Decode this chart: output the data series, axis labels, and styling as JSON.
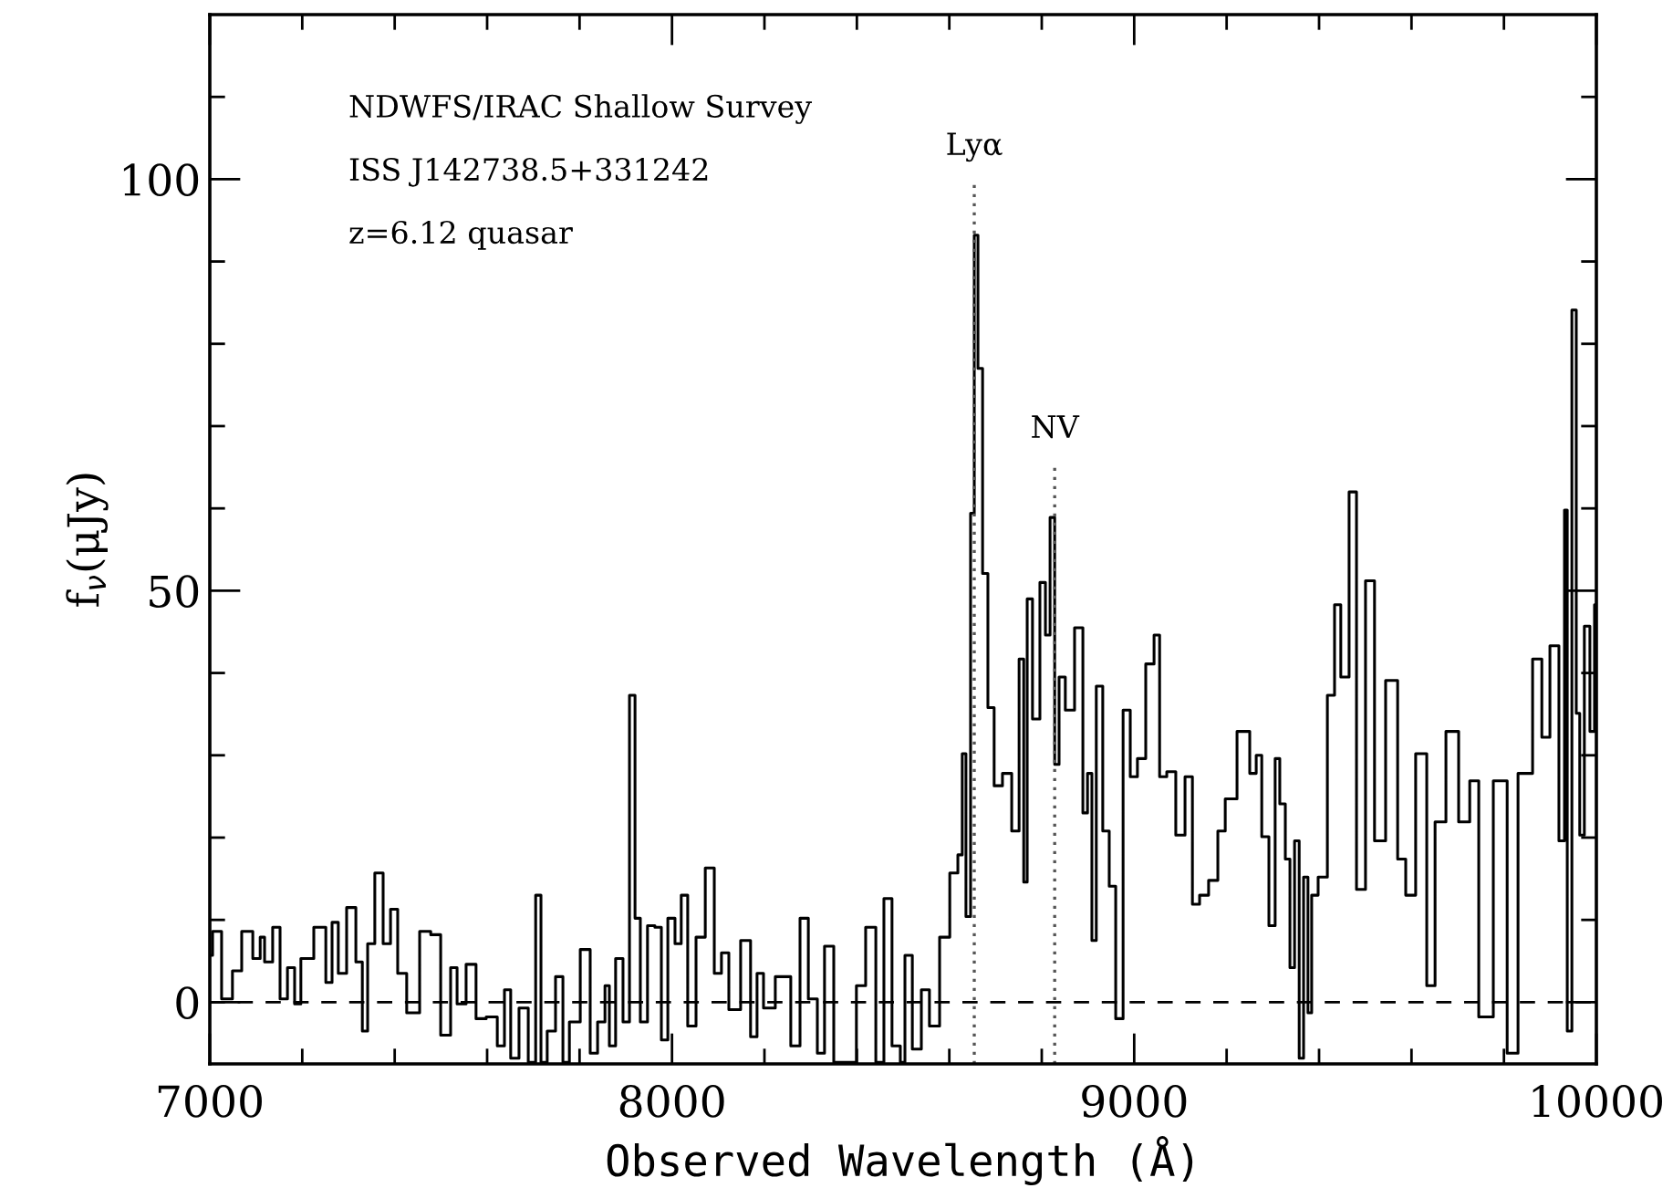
{
  "chart_data": {
    "type": "step",
    "xlabel": "Observed Wavelength (Å)",
    "ylabel": "f$_{ν}$(μJy)",
    "annotations": [
      "NDWFS/IRAC Shallow Survey",
      "ISS J142738.5+331242",
      "z=6.12 quasar"
    ],
    "x": [
      7000,
      7012,
      7039,
      7059,
      7079,
      7107,
      7111,
      7126,
      7146,
      7158,
      7178,
      7189,
      7205,
      7245,
      7257,
      7272,
      7284,
      7308,
      7324,
      7336,
      7347,
      7367,
      7383,
      7399,
      7414,
      7438,
      7470,
      7486,
      7513,
      7529,
      7541,
      7568,
      7584,
      7612,
      7632,
      7643,
      7659,
      7679,
      7699,
      7711,
      7722,
      7738,
      7758,
      7770,
      7786,
      7817,
      7829,
      7849,
      7861,
      7868,
      7888,
      7900,
      7916,
      7924,
      7939,
      7955,
      7971,
      7983,
      7999,
      8014,
      8026,
      8042,
      8062,
      8082,
      8101,
      8113,
      8133,
      8164,
      8176,
      8192,
      8204,
      8243,
      8271,
      8283,
      8307,
      8322,
      8338,
      8362,
      8389,
      8409,
      8429,
      8453,
      8464,
      8488,
      8500,
      8508,
      8532,
      8547,
      8567,
      8591,
      8611,
      8626,
      8630,
      8642,
      8650,
      8658,
      8666,
      8678,
      8689,
      8705,
      8725,
      8745,
      8757,
      8765,
      8772,
      8788,
      8804,
      8812,
      8824,
      8832,
      8843,
      8859,
      8883,
      8895,
      8903,
      8914,
      8922,
      8942,
      8950,
      8970,
      8982,
      9001,
      9013,
      9037,
      9049,
      9061,
      9080,
      9100,
      9120,
      9132,
      9151,
      9171,
      9191,
      9203,
      9242,
      9258,
      9270,
      9282,
      9301,
      9309,
      9321,
      9333,
      9341,
      9353,
      9361,
      9372,
      9380,
      9388,
      9408,
      9428,
      9439,
      9455,
      9475,
      9487,
      9514,
      9526,
      9562,
      9578,
      9597,
      9621,
      9645,
      9657,
      9692,
      9712,
      9740,
      9751,
      9803,
      9811,
      9850,
      9874,
      9890,
      9909,
      9929,
      9933,
      9941,
      9953,
      9960,
      9968,
      9980,
      9992,
      10000
    ],
    "series": [
      {
        "color": "#000000",
        "values": [
          5.7,
          8.6,
          0.4,
          3.8,
          8.6,
          5.3,
          7.9,
          4.9,
          9.1,
          0.4,
          4.2,
          -0.2,
          5.3,
          9.1,
          2.4,
          9.7,
          3.5,
          11.5,
          4.9,
          -3.5,
          7.1,
          15.7,
          7.1,
          11.3,
          3.5,
          -1.3,
          8.6,
          8.2,
          -4.0,
          4.2,
          -0.2,
          4.6,
          -2.0,
          -1.8,
          -5.3,
          1.5,
          -6.8,
          -0.7,
          -7.3,
          13.0,
          -7.3,
          -3.5,
          3.1,
          -7.3,
          -2.4,
          6.4,
          -6.2,
          -2.4,
          2.0,
          -5.3,
          5.3,
          -2.4,
          37.3,
          10.2,
          -2.4,
          9.3,
          9.1,
          -4.6,
          10.2,
          7.1,
          13.0,
          -2.9,
          7.9,
          16.3,
          3.5,
          6.0,
          -0.9,
          7.5,
          -4.2,
          3.5,
          -0.7,
          3.1,
          -5.3,
          10.2,
          0.4,
          -6.2,
          6.8,
          -7.3,
          -7.3,
          2.0,
          9.1,
          -7.3,
          12.6,
          -5.3,
          -7.3,
          5.7,
          -5.7,
          1.5,
          -2.9,
          7.9,
          15.7,
          17.9,
          30.2,
          10.4,
          59.4,
          93.2,
          77.0,
          52.1,
          35.8,
          26.3,
          27.8,
          20.8,
          41.7,
          14.6,
          49.0,
          34.4,
          51.0,
          44.6,
          58.9,
          28.9,
          39.5,
          35.5,
          45.5,
          23.0,
          27.8,
          7.5,
          38.4,
          20.8,
          14.1,
          -2.0,
          35.5,
          27.4,
          29.6,
          41.1,
          44.6,
          27.4,
          28.0,
          20.3,
          27.4,
          11.9,
          13.0,
          14.8,
          20.8,
          24.7,
          32.9,
          27.8,
          30.0,
          20.1,
          9.3,
          29.6,
          24.1,
          17.4,
          4.2,
          19.6,
          -6.8,
          15.2,
          -1.3,
          13.0,
          15.2,
          37.3,
          48.3,
          39.5,
          62.0,
          13.7,
          51.2,
          19.6,
          39.1,
          17.4,
          13.0,
          30.2,
          2.0,
          21.9,
          32.9,
          21.9,
          26.9,
          -1.8,
          26.9,
          -6.2,
          27.8,
          41.7,
          32.2,
          43.3,
          19.6,
          59.8,
          -3.5,
          84.1,
          35.1,
          20.3,
          45.7,
          32.9,
          48.3
        ]
      }
    ],
    "ref_lines": [
      {
        "axis": "y",
        "value": 0,
        "line_style": "dashed",
        "color": "#000000"
      },
      {
        "axis": "x",
        "value": 8654,
        "line_style": "dotted",
        "color": "#555555",
        "label": "Lyα"
      },
      {
        "axis": "x",
        "value": 8828,
        "line_style": "dotted",
        "color": "#555555",
        "label": "NV"
      }
    ],
    "xlim": [
      7000,
      10000
    ],
    "ylim": [
      -7.5,
      120
    ],
    "xticks": [
      7000,
      {
        "value": 7200,
        "label": null
      },
      {
        "value": 7400,
        "label": null
      },
      {
        "value": 7600,
        "label": null
      },
      {
        "value": 7800,
        "label": null
      },
      8000,
      {
        "value": 8200,
        "label": null
      },
      {
        "value": 8400,
        "label": null
      },
      {
        "value": 8600,
        "label": null
      },
      {
        "value": 8800,
        "label": null
      },
      9000,
      {
        "value": 9200,
        "label": null
      },
      {
        "value": 9400,
        "label": null
      },
      {
        "value": 9600,
        "label": null
      },
      {
        "value": 9800,
        "label": null
      },
      10000
    ],
    "yticks": [
      0,
      {
        "value": 10,
        "label": null
      },
      {
        "value": 20,
        "label": null
      },
      {
        "value": 30,
        "label": null
      },
      {
        "value": 40,
        "label": null
      },
      50,
      {
        "value": 60,
        "label": null
      },
      {
        "value": 70,
        "label": null
      },
      {
        "value": 80,
        "label": null
      },
      {
        "value": 90,
        "label": null
      },
      100,
      {
        "value": 110,
        "label": null
      }
    ],
    "grid": false,
    "legend": false
  }
}
